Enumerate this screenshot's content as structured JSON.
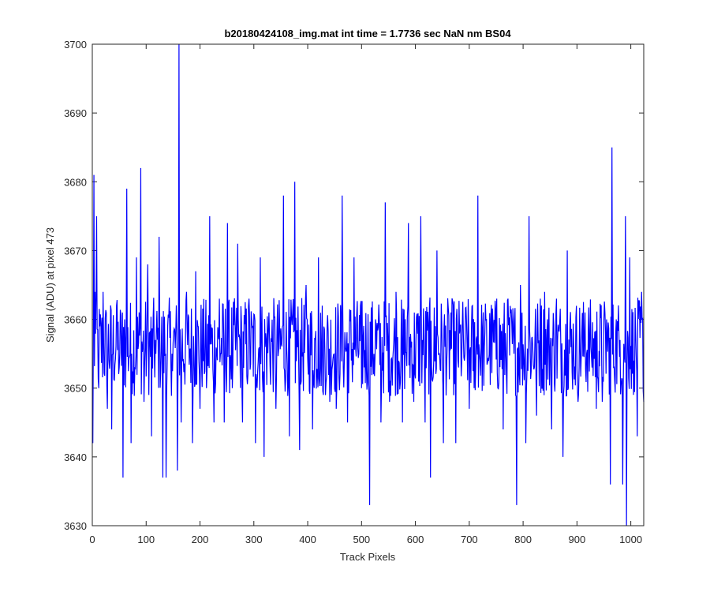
{
  "chart_data": {
    "type": "line",
    "title": "b20180424108_img.mat int time = 1.7736 sec  NaN nm BS04",
    "xlabel": "Track Pixels",
    "ylabel": "Signal (ADU) at pixel 473",
    "xlim": [
      0,
      1024
    ],
    "ylim": [
      3630,
      3700
    ],
    "xticks": [
      0,
      100,
      200,
      300,
      400,
      500,
      600,
      700,
      800,
      900,
      1000
    ],
    "yticks": [
      3630,
      3640,
      3650,
      3660,
      3670,
      3680,
      3690,
      3700
    ],
    "grid": false,
    "line_color": "#0000ff",
    "series": [
      {
        "x_start": 1,
        "x_step": 1,
        "baseline": 3656,
        "noise_amplitude": 6,
        "values_note_points": [
          [
            1,
            3642
          ],
          [
            3,
            3681
          ],
          [
            5,
            3664
          ],
          [
            8,
            3675
          ],
          [
            12,
            3650
          ],
          [
            20,
            3664
          ],
          [
            28,
            3647
          ],
          [
            36,
            3644
          ],
          [
            45,
            3662
          ],
          [
            50,
            3653
          ],
          [
            57,
            3637
          ],
          [
            60,
            3660
          ],
          [
            64,
            3679
          ],
          [
            72,
            3642
          ],
          [
            82,
            3669
          ],
          [
            90,
            3682
          ],
          [
            96,
            3648
          ],
          [
            103,
            3668
          ],
          [
            110,
            3643
          ],
          [
            118,
            3655
          ],
          [
            124,
            3672
          ],
          [
            131,
            3637
          ],
          [
            137,
            3637
          ],
          [
            148,
            3655
          ],
          [
            158,
            3638
          ],
          [
            161,
            3700
          ],
          [
            165,
            3645
          ],
          [
            175,
            3664
          ],
          [
            186,
            3642
          ],
          [
            192,
            3667
          ],
          [
            200,
            3647
          ],
          [
            212,
            3650
          ],
          [
            218,
            3675
          ],
          [
            226,
            3645
          ],
          [
            236,
            3663
          ],
          [
            245,
            3645
          ],
          [
            251,
            3674
          ],
          [
            260,
            3650
          ],
          [
            270,
            3671
          ],
          [
            279,
            3645
          ],
          [
            291,
            3663
          ],
          [
            303,
            3642
          ],
          [
            312,
            3669
          ],
          [
            319,
            3640
          ],
          [
            328,
            3661
          ],
          [
            341,
            3647
          ],
          [
            355,
            3678
          ],
          [
            366,
            3643
          ],
          [
            376,
            3680
          ],
          [
            385,
            3641
          ],
          [
            397,
            3665
          ],
          [
            409,
            3644
          ],
          [
            420,
            3669
          ],
          [
            429,
            3649
          ],
          [
            441,
            3648
          ],
          [
            453,
            3647
          ],
          [
            464,
            3678
          ],
          [
            474,
            3645
          ],
          [
            486,
            3669
          ],
          [
            500,
            3650
          ],
          [
            515,
            3633
          ],
          [
            526,
            3660
          ],
          [
            536,
            3645
          ],
          [
            544,
            3677
          ],
          [
            552,
            3648
          ],
          [
            564,
            3664
          ],
          [
            576,
            3645
          ],
          [
            587,
            3674
          ],
          [
            597,
            3648
          ],
          [
            610,
            3675
          ],
          [
            618,
            3645
          ],
          [
            628,
            3637
          ],
          [
            640,
            3670
          ],
          [
            652,
            3642
          ],
          [
            666,
            3661
          ],
          [
            675,
            3642
          ],
          [
            691,
            3654
          ],
          [
            700,
            3647
          ],
          [
            709,
            3650
          ],
          [
            716,
            3678
          ],
          [
            728,
            3656
          ],
          [
            740,
            3660
          ],
          [
            751,
            3663
          ],
          [
            763,
            3644
          ],
          [
            772,
            3663
          ],
          [
            783,
            3655
          ],
          [
            788,
            3633
          ],
          [
            795,
            3665
          ],
          [
            805,
            3642
          ],
          [
            811,
            3675
          ],
          [
            825,
            3646
          ],
          [
            832,
            3663
          ],
          [
            840,
            3664
          ],
          [
            853,
            3644
          ],
          [
            862,
            3663
          ],
          [
            874,
            3640
          ],
          [
            882,
            3670
          ],
          [
            894,
            3656
          ],
          [
            902,
            3648
          ],
          [
            915,
            3661
          ],
          [
            926,
            3656
          ],
          [
            936,
            3647
          ],
          [
            947,
            3648
          ],
          [
            955,
            3660
          ],
          [
            962,
            3636
          ],
          [
            965,
            3685
          ],
          [
            972,
            3658
          ],
          [
            980,
            3657
          ],
          [
            985,
            3636
          ],
          [
            990,
            3675
          ],
          [
            992,
            3630
          ],
          [
            998,
            3669
          ],
          [
            1006,
            3654
          ],
          [
            1012,
            3643
          ],
          [
            1020,
            3664
          ],
          [
            1024,
            3648
          ]
        ]
      }
    ]
  }
}
